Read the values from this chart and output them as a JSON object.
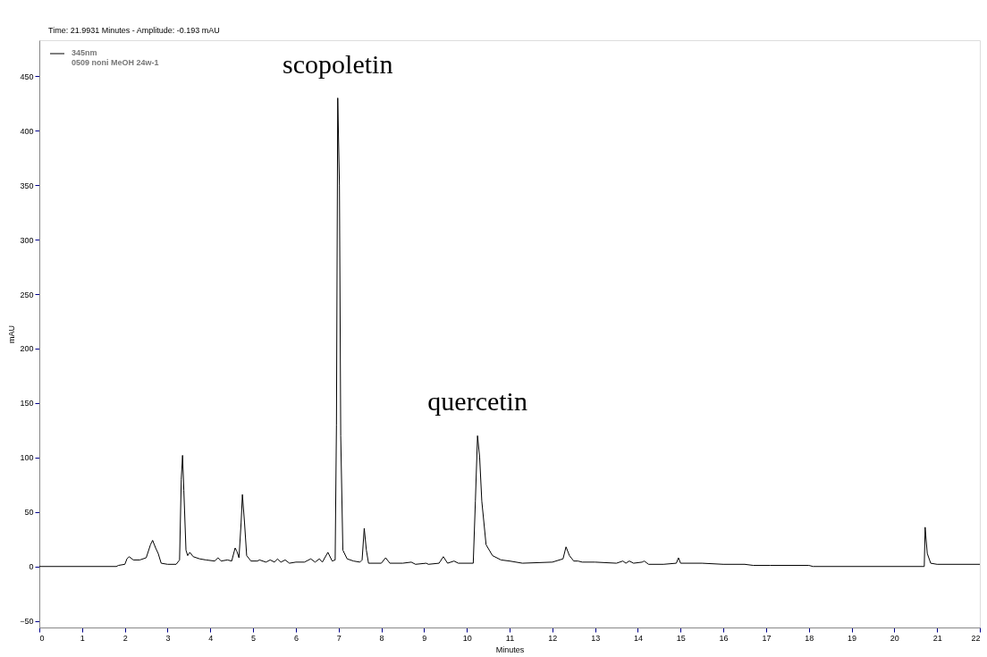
{
  "chart_data": {
    "type": "line",
    "xlabel": "Minutes",
    "ylabel": "mAU",
    "xlim": [
      0,
      22
    ],
    "ylim": [
      -56,
      483
    ],
    "xticks": [
      0,
      1,
      2,
      3,
      4,
      5,
      6,
      7,
      8,
      9,
      10,
      11,
      12,
      13,
      14,
      15,
      16,
      17,
      18,
      19,
      20,
      21,
      22
    ],
    "yticks": [
      -50,
      0,
      50,
      100,
      150,
      200,
      250,
      300,
      350,
      400,
      450
    ],
    "grid": false,
    "legend": "top left",
    "marker": "none",
    "line_style": "solid",
    "annotations": [
      "Time: 21.9931 Minutes - Amplitude: -0.193 mAU",
      {
        "text": "scopoletin",
        "x": 6.98,
        "y": 430
      },
      {
        "text": "quercetin",
        "x": 10.25,
        "y": 120
      }
    ],
    "series": [
      {
        "name": "345nm\n0509 noni MeOH 24w-1",
        "color": "#000000",
        "x": [
          0,
          1.8,
          1.85,
          2.0,
          2.05,
          2.1,
          2.2,
          2.35,
          2.5,
          2.6,
          2.65,
          2.72,
          2.78,
          2.85,
          3.0,
          3.2,
          3.28,
          3.32,
          3.35,
          3.38,
          3.43,
          3.47,
          3.52,
          3.6,
          3.75,
          3.9,
          4.1,
          4.18,
          4.25,
          4.4,
          4.5,
          4.58,
          4.62,
          4.67,
          4.72,
          4.75,
          4.8,
          4.85,
          4.95,
          5.1,
          5.15,
          5.3,
          5.4,
          5.5,
          5.57,
          5.65,
          5.75,
          5.85,
          6.0,
          6.2,
          6.35,
          6.45,
          6.55,
          6.62,
          6.75,
          6.85,
          6.92,
          6.95,
          6.98,
          7.02,
          7.05,
          7.1,
          7.2,
          7.35,
          7.5,
          7.55,
          7.6,
          7.65,
          7.7,
          8.0,
          8.1,
          8.2,
          8.5,
          8.7,
          8.8,
          9.05,
          9.1,
          9.35,
          9.45,
          9.55,
          9.7,
          9.8,
          10.15,
          10.2,
          10.25,
          10.3,
          10.35,
          10.45,
          10.6,
          10.8,
          11.0,
          11.3,
          12.0,
          12.25,
          12.32,
          12.4,
          12.5,
          12.6,
          12.7,
          13.0,
          13.5,
          13.65,
          13.72,
          13.8,
          13.9,
          14.1,
          14.15,
          14.25,
          14.6,
          14.9,
          14.95,
          15.0,
          15.5,
          16.0,
          16.5,
          16.7,
          17.1,
          18.0,
          18.1,
          20.7,
          20.72,
          20.77,
          20.85,
          21.0,
          22.0
        ],
        "values": [
          0,
          0,
          1,
          2,
          7,
          9,
          6,
          6,
          8,
          20,
          24,
          17,
          12,
          3,
          2,
          2,
          6,
          80,
          102,
          70,
          15,
          10,
          13,
          9,
          7,
          6,
          5,
          8,
          5,
          6,
          5,
          17,
          14,
          8,
          40,
          66,
          40,
          10,
          5,
          5,
          6,
          4,
          6,
          4,
          7,
          4,
          6,
          3,
          4,
          4,
          7,
          4,
          7,
          4,
          13,
          5,
          6,
          130,
          430,
          350,
          120,
          15,
          7,
          5,
          4,
          6,
          35,
          15,
          3,
          3,
          8,
          3,
          3,
          4,
          2,
          3,
          2,
          3,
          9,
          3,
          5,
          3,
          3,
          60,
          120,
          100,
          60,
          20,
          10,
          6,
          5,
          3,
          4,
          7,
          18,
          10,
          5,
          5,
          4,
          4,
          3,
          5,
          3,
          5,
          3,
          4,
          5,
          2,
          2,
          3,
          8,
          3,
          3,
          2,
          2,
          1,
          1,
          1,
          0,
          0,
          36,
          12,
          3,
          2,
          2
        ]
      }
    ]
  }
}
